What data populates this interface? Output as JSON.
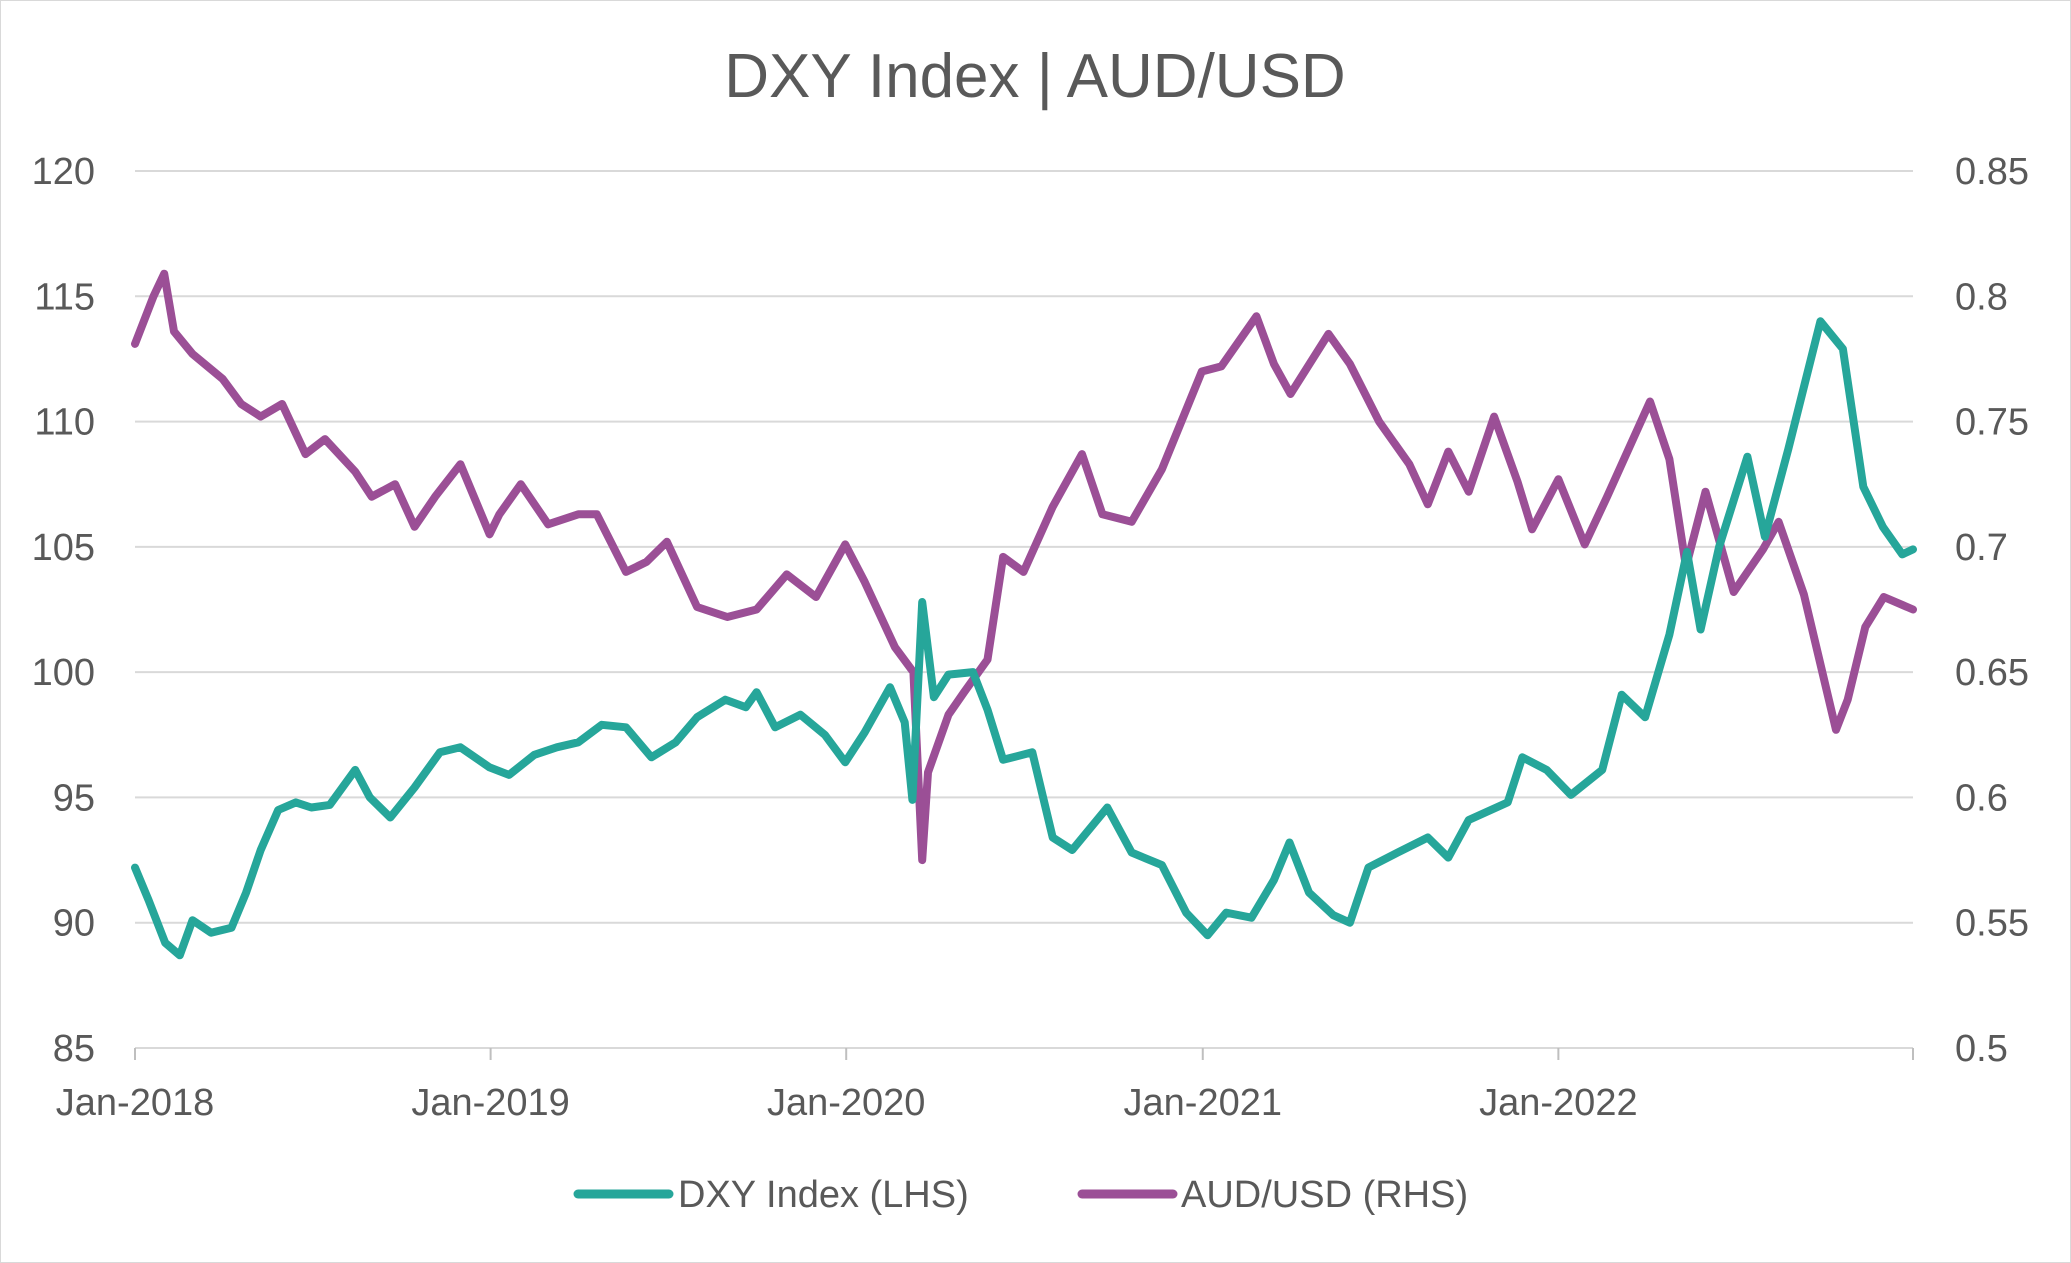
{
  "chart_data": {
    "type": "line",
    "title": "DXY Index | AUD/USD",
    "x_range": [
      "2018-01-01",
      "2022-12-31"
    ],
    "x_ticks": [
      "Jan-2018",
      "Jan-2019",
      "Jan-2020",
      "Jan-2021",
      "Jan-2022"
    ],
    "x_tick_dates": [
      "2018-01-01",
      "2019-01-01",
      "2020-01-01",
      "2021-01-01",
      "2022-01-01"
    ],
    "y_left": {
      "min": 85,
      "max": 120,
      "ticks": [
        "120",
        "115",
        "110",
        "105",
        "100",
        "95",
        "90",
        "85"
      ]
    },
    "y_right": {
      "min": 0.5,
      "max": 0.85,
      "ticks": [
        "0.85",
        "0.8",
        "0.75",
        "0.7",
        "0.65",
        "0.6",
        "0.55",
        "0.5"
      ]
    },
    "grid": "horizontal",
    "legend_position": "bottom",
    "series": [
      {
        "name": "DXY Index (LHS)",
        "axis": "left",
        "color": "#26a69a",
        "points": [
          [
            "2018-01-01",
            92.2
          ],
          [
            "2018-01-15",
            90.9
          ],
          [
            "2018-02-01",
            89.2
          ],
          [
            "2018-02-16",
            88.7
          ],
          [
            "2018-03-01",
            90.1
          ],
          [
            "2018-03-20",
            89.6
          ],
          [
            "2018-04-10",
            89.8
          ],
          [
            "2018-04-25",
            91.2
          ],
          [
            "2018-05-10",
            92.9
          ],
          [
            "2018-05-28",
            94.5
          ],
          [
            "2018-06-15",
            94.8
          ],
          [
            "2018-07-01",
            94.6
          ],
          [
            "2018-07-20",
            94.7
          ],
          [
            "2018-08-15",
            96.1
          ],
          [
            "2018-08-30",
            95.0
          ],
          [
            "2018-09-20",
            94.2
          ],
          [
            "2018-10-15",
            95.4
          ],
          [
            "2018-11-10",
            96.8
          ],
          [
            "2018-12-01",
            97.0
          ],
          [
            "2018-12-31",
            96.2
          ],
          [
            "2019-01-20",
            95.9
          ],
          [
            "2019-02-15",
            96.7
          ],
          [
            "2019-03-10",
            97.0
          ],
          [
            "2019-04-01",
            97.2
          ],
          [
            "2019-04-25",
            97.9
          ],
          [
            "2019-05-20",
            97.8
          ],
          [
            "2019-06-15",
            96.6
          ],
          [
            "2019-07-10",
            97.2
          ],
          [
            "2019-08-01",
            98.2
          ],
          [
            "2019-08-30",
            98.9
          ],
          [
            "2019-09-20",
            98.6
          ],
          [
            "2019-10-01",
            99.2
          ],
          [
            "2019-10-20",
            97.8
          ],
          [
            "2019-11-15",
            98.3
          ],
          [
            "2019-12-10",
            97.5
          ],
          [
            "2019-12-31",
            96.4
          ],
          [
            "2020-01-20",
            97.6
          ],
          [
            "2020-02-15",
            99.4
          ],
          [
            "2020-03-01",
            98.0
          ],
          [
            "2020-03-09",
            94.9
          ],
          [
            "2020-03-19",
            102.8
          ],
          [
            "2020-03-31",
            99.0
          ],
          [
            "2020-04-15",
            99.9
          ],
          [
            "2020-05-10",
            100.0
          ],
          [
            "2020-05-25",
            98.5
          ],
          [
            "2020-06-10",
            96.5
          ],
          [
            "2020-07-10",
            96.8
          ],
          [
            "2020-07-31",
            93.4
          ],
          [
            "2020-08-20",
            92.9
          ],
          [
            "2020-09-25",
            94.6
          ],
          [
            "2020-10-20",
            92.8
          ],
          [
            "2020-11-20",
            92.3
          ],
          [
            "2020-12-15",
            90.4
          ],
          [
            "2021-01-06",
            89.5
          ],
          [
            "2021-01-25",
            90.4
          ],
          [
            "2021-02-20",
            90.2
          ],
          [
            "2021-03-15",
            91.7
          ],
          [
            "2021-03-31",
            93.2
          ],
          [
            "2021-04-20",
            91.2
          ],
          [
            "2021-05-15",
            90.3
          ],
          [
            "2021-06-01",
            90.0
          ],
          [
            "2021-06-20",
            92.2
          ],
          [
            "2021-07-20",
            92.8
          ],
          [
            "2021-08-20",
            93.4
          ],
          [
            "2021-09-10",
            92.6
          ],
          [
            "2021-10-01",
            94.1
          ],
          [
            "2021-11-10",
            94.8
          ],
          [
            "2021-11-25",
            96.6
          ],
          [
            "2021-12-20",
            96.1
          ],
          [
            "2022-01-14",
            95.1
          ],
          [
            "2022-02-15",
            96.1
          ],
          [
            "2022-03-07",
            99.1
          ],
          [
            "2022-03-31",
            98.2
          ],
          [
            "2022-04-25",
            101.5
          ],
          [
            "2022-05-13",
            104.8
          ],
          [
            "2022-05-27",
            101.7
          ],
          [
            "2022-06-15",
            105.0
          ],
          [
            "2022-07-14",
            108.6
          ],
          [
            "2022-08-01",
            105.4
          ],
          [
            "2022-08-25",
            108.9
          ],
          [
            "2022-09-27",
            114.0
          ],
          [
            "2022-10-20",
            112.9
          ],
          [
            "2022-11-10",
            107.4
          ],
          [
            "2022-11-30",
            105.8
          ],
          [
            "2022-12-20",
            104.7
          ],
          [
            "2022-12-31",
            104.9
          ]
        ]
      },
      {
        "name": "AUD/USD (RHS)",
        "axis": "right",
        "color": "#9b4f96",
        "points": [
          [
            "2018-01-01",
            0.781
          ],
          [
            "2018-01-20",
            0.8
          ],
          [
            "2018-01-31",
            0.809
          ],
          [
            "2018-02-10",
            0.786
          ],
          [
            "2018-03-01",
            0.777
          ],
          [
            "2018-04-01",
            0.767
          ],
          [
            "2018-04-20",
            0.757
          ],
          [
            "2018-05-10",
            0.752
          ],
          [
            "2018-06-01",
            0.757
          ],
          [
            "2018-06-25",
            0.737
          ],
          [
            "2018-07-15",
            0.743
          ],
          [
            "2018-08-15",
            0.73
          ],
          [
            "2018-09-01",
            0.72
          ],
          [
            "2018-09-25",
            0.725
          ],
          [
            "2018-10-15",
            0.708
          ],
          [
            "2018-11-05",
            0.72
          ],
          [
            "2018-12-01",
            0.733
          ],
          [
            "2018-12-31",
            0.705
          ],
          [
            "2019-01-10",
            0.713
          ],
          [
            "2019-02-01",
            0.725
          ],
          [
            "2019-03-01",
            0.709
          ],
          [
            "2019-04-01",
            0.713
          ],
          [
            "2019-04-20",
            0.713
          ],
          [
            "2019-05-20",
            0.69
          ],
          [
            "2019-06-10",
            0.694
          ],
          [
            "2019-07-01",
            0.702
          ],
          [
            "2019-08-01",
            0.676
          ],
          [
            "2019-09-01",
            0.672
          ],
          [
            "2019-10-01",
            0.675
          ],
          [
            "2019-11-01",
            0.689
          ],
          [
            "2019-12-01",
            0.68
          ],
          [
            "2019-12-31",
            0.701
          ],
          [
            "2020-01-20",
            0.686
          ],
          [
            "2020-02-20",
            0.66
          ],
          [
            "2020-03-10",
            0.65
          ],
          [
            "2020-03-19",
            0.575
          ],
          [
            "2020-03-25",
            0.61
          ],
          [
            "2020-04-15",
            0.633
          ],
          [
            "2020-05-01",
            0.642
          ],
          [
            "2020-05-25",
            0.655
          ],
          [
            "2020-06-10",
            0.696
          ],
          [
            "2020-07-01",
            0.69
          ],
          [
            "2020-07-31",
            0.716
          ],
          [
            "2020-08-30",
            0.737
          ],
          [
            "2020-09-20",
            0.713
          ],
          [
            "2020-10-20",
            0.71
          ],
          [
            "2020-11-20",
            0.731
          ],
          [
            "2020-12-31",
            0.77
          ],
          [
            "2021-01-20",
            0.772
          ],
          [
            "2021-02-25",
            0.792
          ],
          [
            "2021-03-15",
            0.773
          ],
          [
            "2021-04-01",
            0.761
          ],
          [
            "2021-05-10",
            0.785
          ],
          [
            "2021-06-01",
            0.773
          ],
          [
            "2021-07-01",
            0.75
          ],
          [
            "2021-08-01",
            0.733
          ],
          [
            "2021-08-20",
            0.717
          ],
          [
            "2021-09-10",
            0.738
          ],
          [
            "2021-10-01",
            0.722
          ],
          [
            "2021-10-27",
            0.752
          ],
          [
            "2021-11-20",
            0.726
          ],
          [
            "2021-12-05",
            0.707
          ],
          [
            "2022-01-01",
            0.727
          ],
          [
            "2022-01-28",
            0.701
          ],
          [
            "2022-02-20",
            0.72
          ],
          [
            "2022-04-05",
            0.758
          ],
          [
            "2022-04-25",
            0.735
          ],
          [
            "2022-05-12",
            0.692
          ],
          [
            "2022-06-01",
            0.722
          ],
          [
            "2022-06-30",
            0.682
          ],
          [
            "2022-07-30",
            0.699
          ],
          [
            "2022-08-15",
            0.71
          ],
          [
            "2022-09-10",
            0.681
          ],
          [
            "2022-10-13",
            0.627
          ],
          [
            "2022-10-25",
            0.639
          ],
          [
            "2022-11-12",
            0.668
          ],
          [
            "2022-12-01",
            0.68
          ],
          [
            "2022-12-31",
            0.675
          ]
        ]
      }
    ]
  }
}
